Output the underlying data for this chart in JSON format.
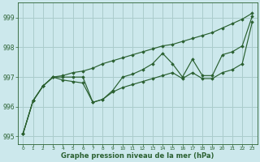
{
  "background_color": "#cce8ec",
  "grid_color": "#aacccc",
  "line_color": "#2a6030",
  "xlabel": "Graphe pression niveau de la mer (hPa)",
  "ylim": [
    994.75,
    999.5
  ],
  "yticks": [
    995,
    996,
    997,
    998,
    999
  ],
  "xlim": [
    -0.5,
    23.5
  ],
  "xticks": [
    0,
    1,
    2,
    3,
    4,
    5,
    6,
    7,
    8,
    9,
    10,
    11,
    12,
    13,
    14,
    15,
    16,
    17,
    18,
    19,
    20,
    21,
    22,
    23
  ],
  "series": {
    "upper": [
      995.1,
      996.2,
      996.7,
      997.0,
      997.05,
      997.15,
      997.2,
      997.3,
      997.45,
      997.55,
      997.65,
      997.75,
      997.85,
      997.95,
      998.05,
      998.1,
      998.2,
      998.3,
      998.4,
      998.5,
      998.65,
      998.8,
      998.95,
      999.15
    ],
    "main": [
      995.1,
      996.2,
      996.7,
      997.0,
      997.0,
      997.0,
      997.0,
      996.15,
      996.25,
      996.55,
      997.0,
      997.1,
      997.25,
      997.45,
      997.8,
      997.45,
      997.0,
      997.6,
      997.05,
      997.05,
      997.75,
      997.85,
      998.05,
      999.05
    ],
    "lower": [
      995.1,
      996.2,
      996.7,
      997.0,
      996.9,
      996.85,
      996.8,
      996.15,
      996.25,
      996.5,
      996.65,
      996.75,
      996.85,
      996.95,
      997.05,
      997.15,
      996.95,
      997.15,
      996.95,
      996.95,
      997.15,
      997.25,
      997.45,
      998.85
    ]
  }
}
